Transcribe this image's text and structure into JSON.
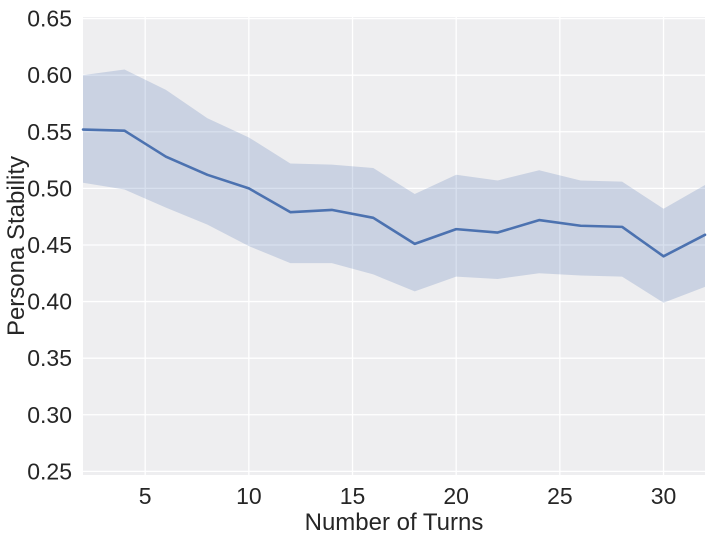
{
  "figure": {
    "xlabel": "Number of Turns",
    "ylabel": "Persona Stability"
  },
  "chart_data": {
    "type": "line",
    "title": "",
    "xlabel": "Number of Turns",
    "ylabel": "Persona Stability",
    "x": [
      2,
      4,
      6,
      8,
      10,
      12,
      14,
      16,
      18,
      20,
      22,
      24,
      26,
      28,
      30,
      32
    ],
    "series": [
      {
        "name": "persona_stability_mean",
        "values": [
          0.552,
          0.551,
          0.528,
          0.512,
          0.5,
          0.479,
          0.481,
          0.474,
          0.451,
          0.464,
          0.461,
          0.472,
          0.467,
          0.466,
          0.44,
          0.459
        ]
      }
    ],
    "band": {
      "name": "confidence_interval",
      "upper": [
        0.6,
        0.605,
        0.587,
        0.562,
        0.545,
        0.522,
        0.521,
        0.518,
        0.495,
        0.512,
        0.507,
        0.516,
        0.507,
        0.506,
        0.482,
        0.503
      ],
      "lower": [
        0.505,
        0.499,
        0.483,
        0.468,
        0.449,
        0.434,
        0.434,
        0.424,
        0.409,
        0.422,
        0.42,
        0.425,
        0.423,
        0.422,
        0.399,
        0.413
      ]
    },
    "x_ticks": [
      5,
      10,
      15,
      20,
      25,
      30
    ],
    "y_ticks": [
      0.25,
      0.3,
      0.35,
      0.4,
      0.45,
      0.5,
      0.55,
      0.6,
      0.65
    ],
    "xlim": [
      2,
      32
    ],
    "ylim": [
      0.2468,
      0.6514
    ],
    "grid": true,
    "legend": false,
    "colors": {
      "line": "#4c72b0",
      "band_fill": "#4c72b0",
      "band_opacity": 0.22,
      "plot_background": "#eeeef0",
      "grid": "#ffffff",
      "text": "#262626",
      "figure_background": "#ffffff"
    }
  }
}
